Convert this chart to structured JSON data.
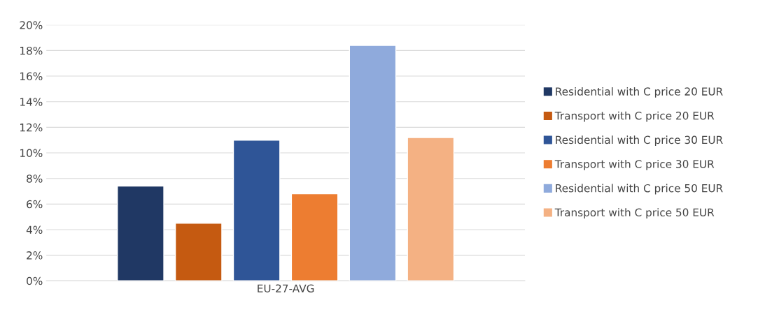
{
  "chart_data": {
    "type": "bar",
    "categories": [
      "EU-27-AVG"
    ],
    "series": [
      {
        "name": "Residential with C price 20 EUR",
        "color": "#203864",
        "values": [
          7.4
        ]
      },
      {
        "name": "Transport with C price 20 EUR",
        "color": "#c55a11",
        "values": [
          4.5
        ]
      },
      {
        "name": "Residential with C price 30 EUR",
        "color": "#2f5597",
        "values": [
          11.0
        ]
      },
      {
        "name": "Transport with C price 30 EUR",
        "color": "#ed7d31",
        "values": [
          6.8
        ]
      },
      {
        "name": "Residential with C price 50 EUR",
        "color": "#8faadc",
        "values": [
          18.4
        ]
      },
      {
        "name": "Transport with C price 50 EUR",
        "color": "#f4b183",
        "values": [
          11.2
        ]
      }
    ],
    "ylim": [
      0,
      20
    ],
    "yticks": [
      {
        "value": 0,
        "label": "0%"
      },
      {
        "value": 2,
        "label": "2%"
      },
      {
        "value": 4,
        "label": "4%"
      },
      {
        "value": 6,
        "label": "6%"
      },
      {
        "value": 8,
        "label": "8%"
      },
      {
        "value": 10,
        "label": "10%"
      },
      {
        "value": 12,
        "label": "12%"
      },
      {
        "value": 14,
        "label": "14%"
      },
      {
        "value": 16,
        "label": "16%"
      },
      {
        "value": 18,
        "label": "18%"
      },
      {
        "value": 20,
        "label": "20%"
      }
    ],
    "grid": "y",
    "legend": "right"
  }
}
